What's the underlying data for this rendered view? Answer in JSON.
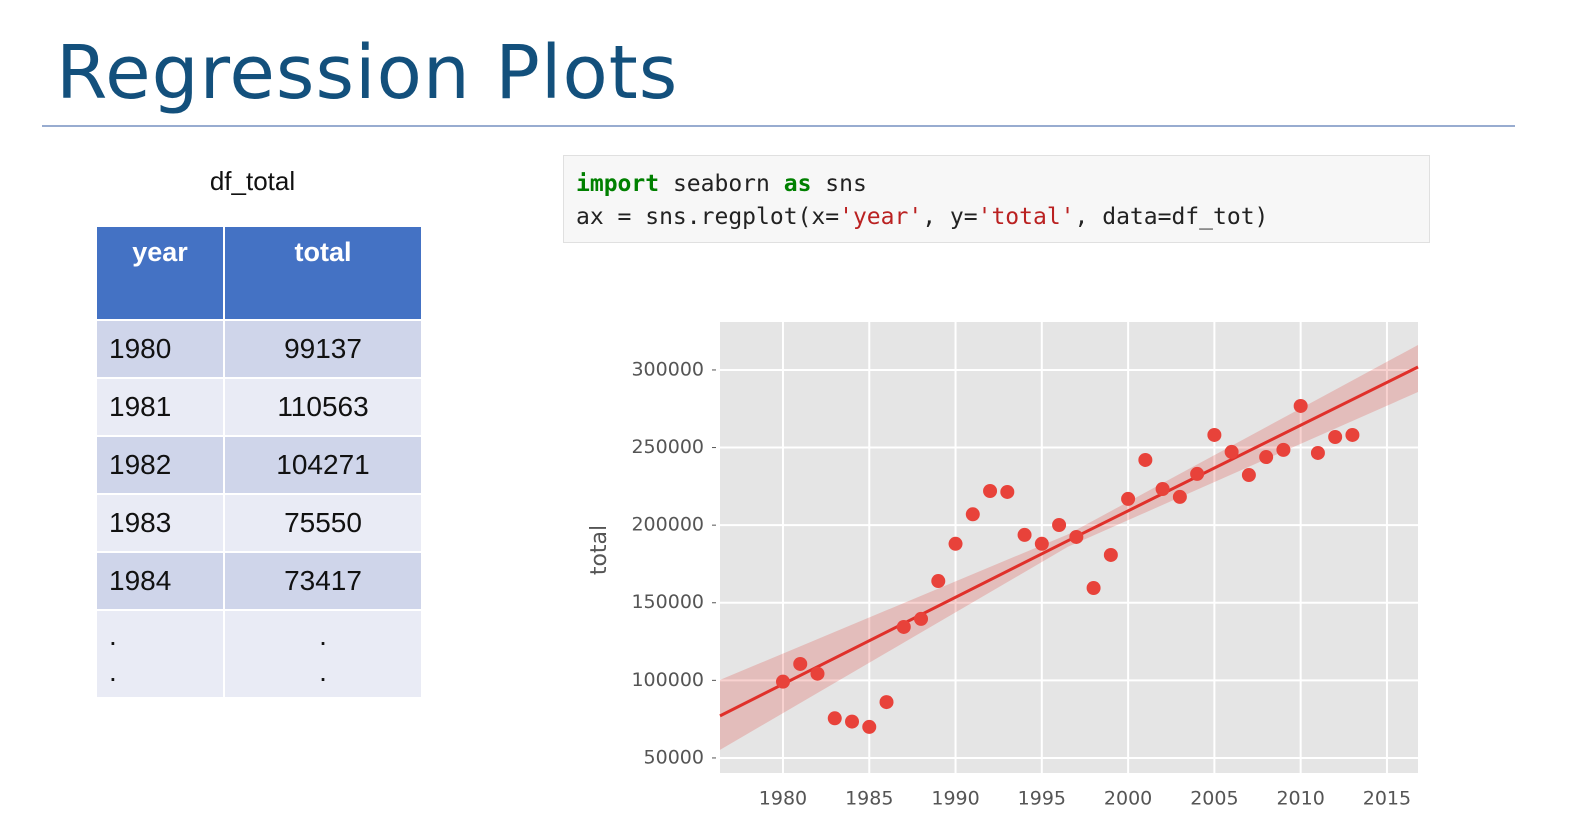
{
  "title": "Regression Plots",
  "table": {
    "caption": "df_total",
    "header": [
      "year",
      "total"
    ],
    "rows": [
      [
        "1980",
        "99137"
      ],
      [
        "1981",
        "110563"
      ],
      [
        "1982",
        "104271"
      ],
      [
        "1983",
        "75550"
      ],
      [
        "1984",
        "73417"
      ]
    ],
    "ellipsis": [
      [
        ".",
        "."
      ],
      [
        ".",
        "."
      ]
    ]
  },
  "code": {
    "lines": [
      [
        {
          "text": "import",
          "color": "#008000"
        },
        {
          "text": " seaborn ",
          "color": "#222222"
        },
        {
          "text": "as",
          "color": "#008000"
        },
        {
          "text": " sns",
          "color": "#222222"
        }
      ],
      [
        {
          "text": "ax = sns.regplot(x=",
          "color": "#222222"
        },
        {
          "text": "'year'",
          "color": "#ba2121"
        },
        {
          "text": ", y=",
          "color": "#222222"
        },
        {
          "text": "'total'",
          "color": "#ba2121"
        },
        {
          "text": ", data=df_tot)",
          "color": "#222222"
        }
      ]
    ]
  },
  "chart_data": {
    "type": "scatter",
    "y_label": "total",
    "series": [
      {
        "color": "#e8423a",
        "x": [
          1980,
          1981,
          1982,
          1983,
          1984,
          1985,
          1986,
          1987,
          1988,
          1989,
          1990,
          1991,
          1992,
          1993,
          1994,
          1995,
          1996,
          1997,
          1998,
          1999,
          2000,
          2001,
          2002,
          2003,
          2004,
          2005,
          2006,
          2007,
          2008,
          2009,
          2010,
          2011,
          2012,
          2013
        ],
        "values": [
          99137,
          110563,
          104271,
          75550,
          73417,
          70000,
          86000,
          134400,
          139600,
          164000,
          188000,
          207000,
          222000,
          221400,
          193700,
          188000,
          200100,
          192400,
          159500,
          180800,
          216900,
          242000,
          223300,
          218200,
          233000,
          258100,
          247200,
          232300,
          243900,
          248500,
          276800,
          246500,
          256800,
          258100
        ]
      }
    ],
    "fit": {
      "color": "#e0302a",
      "x": [
        1976.35,
        1996.5,
        2016.8
      ],
      "values": [
        77100,
        189900,
        301900
      ],
      "lower": [
        55200,
        186000,
        285800
      ],
      "upper": [
        100300,
        194000,
        316100
      ]
    },
    "xlim": [
      1976.35,
      2016.8
    ],
    "ylim": [
      40300,
      330900
    ],
    "xticks": [
      1980,
      1985,
      1990,
      1995,
      2000,
      2005,
      2010,
      2015
    ],
    "yticks": [
      50000,
      100000,
      150000,
      200000,
      250000,
      300000
    ],
    "grid": true
  }
}
